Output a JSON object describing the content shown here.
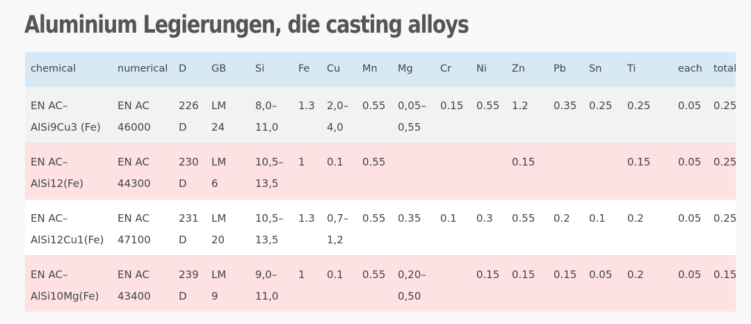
{
  "title": "Aluminium Legierungen, die casting alloys",
  "columns": [
    "chemical",
    "numerical",
    "D",
    "GB",
    "Si",
    "Fe",
    "Cu",
    "Mn",
    "Mg",
    "Cr",
    "Ni",
    "Zn",
    "Pb",
    "Sn",
    "Ti",
    "each",
    "total"
  ],
  "rows": [
    {
      "chemical": [
        "EN AC–",
        "AlSi9Cu3 (Fe)"
      ],
      "numerical": [
        "EN AC",
        "46000"
      ],
      "D": [
        "226",
        "D"
      ],
      "GB": [
        "LM",
        "24"
      ],
      "Si": [
        "8,0–",
        "11,0"
      ],
      "Fe": [
        "1.3"
      ],
      "Cu": [
        "2,0–",
        "4,0"
      ],
      "Mn": [
        "0.55"
      ],
      "Mg": [
        "0,05–",
        "0,55"
      ],
      "Cr": [
        "0.15"
      ],
      "Ni": [
        "0.55"
      ],
      "Zn": [
        "1.2"
      ],
      "Pb": [
        "0.35"
      ],
      "Sn": [
        "0.25"
      ],
      "Ti": [
        "0.25"
      ],
      "each": [
        "0.05"
      ],
      "total": [
        "0.25"
      ]
    },
    {
      "chemical": [
        "EN AC–",
        "AlSi12(Fe)"
      ],
      "numerical": [
        "EN AC",
        "44300"
      ],
      "D": [
        "230",
        "D"
      ],
      "GB": [
        "LM",
        "6"
      ],
      "Si": [
        "10,5–",
        "13,5"
      ],
      "Fe": [
        "1"
      ],
      "Cu": [
        "0.1"
      ],
      "Mn": [
        "0.55"
      ],
      "Mg": [],
      "Cr": [],
      "Ni": [],
      "Zn": [
        "0.15"
      ],
      "Pb": [],
      "Sn": [],
      "Ti": [
        "0.15"
      ],
      "each": [
        "0.05"
      ],
      "total": [
        "0.25"
      ]
    },
    {
      "chemical": [
        "EN AC–",
        "AlSi12Cu1(Fe)"
      ],
      "numerical": [
        "EN AC",
        "47100"
      ],
      "D": [
        "231",
        "D"
      ],
      "GB": [
        "LM",
        "20"
      ],
      "Si": [
        "10,5–",
        "13,5"
      ],
      "Fe": [
        "1.3"
      ],
      "Cu": [
        "0,7–",
        "1,2"
      ],
      "Mn": [
        "0.55"
      ],
      "Mg": [
        "0.35"
      ],
      "Cr": [
        "0.1"
      ],
      "Ni": [
        "0.3"
      ],
      "Zn": [
        "0.55"
      ],
      "Pb": [
        "0.2"
      ],
      "Sn": [
        "0.1"
      ],
      "Ti": [
        "0.2"
      ],
      "each": [
        "0.05"
      ],
      "total": [
        "0.25"
      ]
    },
    {
      "chemical": [
        "EN AC–",
        "AlSi10Mg(Fe)"
      ],
      "numerical": [
        "EN AC",
        "43400"
      ],
      "D": [
        "239",
        "D"
      ],
      "GB": [
        "LM",
        "9"
      ],
      "Si": [
        "9,0–",
        "11,0"
      ],
      "Fe": [
        "1"
      ],
      "Cu": [
        "0.1"
      ],
      "Mn": [
        "0.55"
      ],
      "Mg": [
        "0,20–",
        "0,50"
      ],
      "Cr": [],
      "Ni": [
        "0.15"
      ],
      "Zn": [
        "0.15"
      ],
      "Pb": [
        "0.15"
      ],
      "Sn": [
        "0.05"
      ],
      "Ti": [
        "0.2"
      ],
      "each": [
        "0.05"
      ],
      "total": [
        "0.15"
      ]
    }
  ]
}
